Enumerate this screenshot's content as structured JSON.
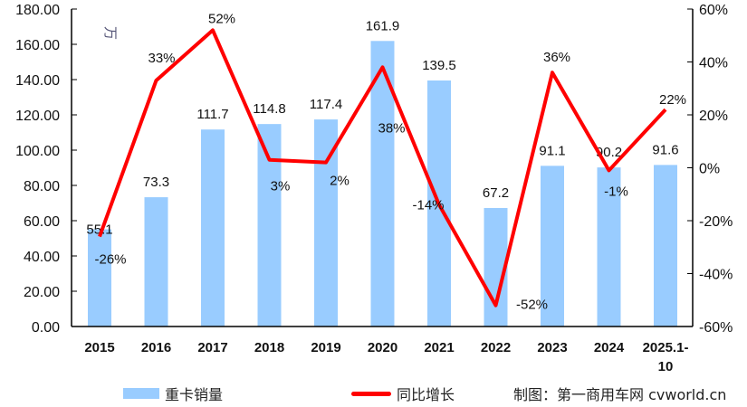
{
  "chart_data": {
    "type": "bar+line",
    "categories": [
      "2015",
      "2016",
      "2017",
      "2018",
      "2019",
      "2020",
      "2021",
      "2022",
      "2023",
      "2024",
      "2025.1-10"
    ],
    "series": [
      {
        "name": "重卡销量",
        "type": "bar",
        "axis": "left",
        "color": "#99ccff",
        "values": [
          55.1,
          73.3,
          111.7,
          114.8,
          117.4,
          161.9,
          139.5,
          67.2,
          91.1,
          90.2,
          91.6
        ],
        "labels": [
          "55.1",
          "73.3",
          "111.7",
          "114.8",
          "117.4",
          "161.9",
          "139.5",
          "67.2",
          "91.1",
          "90.2",
          "91.6"
        ]
      },
      {
        "name": "同比增长",
        "type": "line",
        "axis": "right",
        "color": "#ff0000",
        "values": [
          -26,
          33,
          52,
          3,
          2,
          38,
          -14,
          -52,
          36,
          -1,
          22
        ],
        "labels": [
          "-26%",
          "33%",
          "52%",
          "3%",
          "2%",
          "38%",
          "-14%",
          "-52%",
          "36%",
          "-1%",
          "22%"
        ]
      }
    ],
    "y_left": {
      "range": [
        0,
        180
      ],
      "ticks": [
        "0.00",
        "20.00",
        "40.00",
        "60.00",
        "80.00",
        "100.00",
        "120.00",
        "140.00",
        "160.00",
        "180.00"
      ],
      "unit": "万"
    },
    "y_right": {
      "range": [
        -60,
        60
      ],
      "ticks": [
        "-60%",
        "-40%",
        "-20%",
        "0%",
        "20%",
        "40%",
        "60%"
      ]
    },
    "grid": false,
    "legend_placement": "bottom"
  },
  "credit": "制图：第一商用车网  cvworld.cn"
}
